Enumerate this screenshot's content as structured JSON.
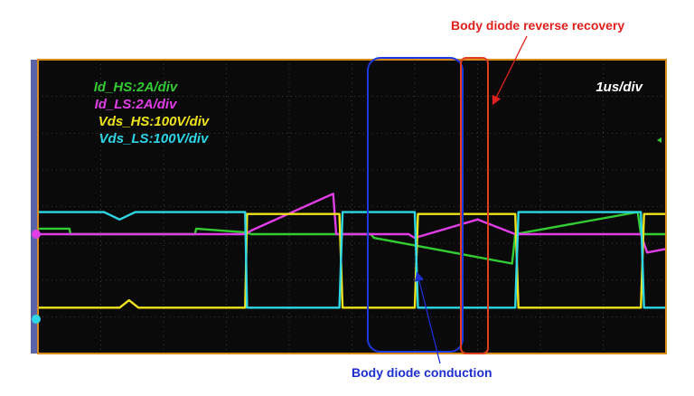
{
  "chart_data": {
    "type": "line",
    "title": "",
    "xlabel": "",
    "ylabel": "",
    "x_unit": "us",
    "x_range_us": [
      0,
      10
    ],
    "timebase": "1us/div",
    "annotations": {
      "reverse_recovery": "Body diode reverse recovery",
      "conduction": "Body diode conduction"
    },
    "legend": [
      {
        "text": "Id_HS:2A/div",
        "color": "#33cc33"
      },
      {
        "text": "Id_LS:2A/div",
        "color": "#e23ee8"
      },
      {
        "text": "Vds_HS:100V/div",
        "color": "#f0e31c"
      },
      {
        "text": "Vds_LS:100V/div",
        "color": "#2ed6e6"
      }
    ],
    "series": [
      {
        "name": "Id_HS:2A/div",
        "color": "#33cc33",
        "unit": "div",
        "x": [
          0,
          0.5,
          0.52,
          1.0,
          2.5,
          2.52,
          3.3,
          3.4,
          5.3,
          5.35,
          7.55,
          7.6,
          9.55,
          9.6,
          10
        ],
        "y": [
          0.15,
          0.15,
          0.0,
          0.0,
          0.0,
          0.15,
          0.05,
          0.0,
          0.0,
          -0.1,
          -0.8,
          0.0,
          0.6,
          0.0,
          0.0
        ]
      },
      {
        "name": "Id_LS:2A/div",
        "color": "#e23ee8",
        "unit": "div",
        "x": [
          0,
          3.3,
          3.4,
          4.7,
          4.75,
          5.9,
          6.0,
          7.0,
          7.6,
          9.6,
          9.7,
          10
        ],
        "y": [
          0.0,
          0.0,
          0.1,
          1.1,
          0.0,
          0.0,
          -0.1,
          0.4,
          0.0,
          0.0,
          -0.5,
          -0.4
        ]
      },
      {
        "name": "Vds_HS:100V/div",
        "color": "#f0e31c",
        "unit": "div",
        "x": [
          0,
          1.3,
          1.45,
          1.6,
          3.3,
          3.33,
          4.8,
          4.85,
          6.0,
          6.05,
          6.15,
          7.6,
          7.65,
          9.6,
          9.65,
          10
        ],
        "y": [
          -2.0,
          -2.0,
          -1.8,
          -2.0,
          -2.0,
          0.55,
          0.55,
          -2.0,
          -2.0,
          0.55,
          0.55,
          0.55,
          -2.0,
          -2.0,
          0.55,
          0.55
        ]
      },
      {
        "name": "Vds_LS:100V/div",
        "color": "#2ed6e6",
        "unit": "div",
        "x": [
          0,
          1.05,
          1.3,
          1.55,
          3.3,
          3.33,
          4.8,
          4.85,
          6.0,
          6.05,
          6.15,
          7.6,
          7.65,
          9.6,
          9.65,
          10
        ],
        "y": [
          0.6,
          0.6,
          0.4,
          0.6,
          0.6,
          -2.0,
          -2.0,
          0.6,
          0.6,
          -2.0,
          -2.0,
          -2.0,
          0.6,
          0.6,
          -2.0,
          -2.0
        ]
      }
    ]
  }
}
